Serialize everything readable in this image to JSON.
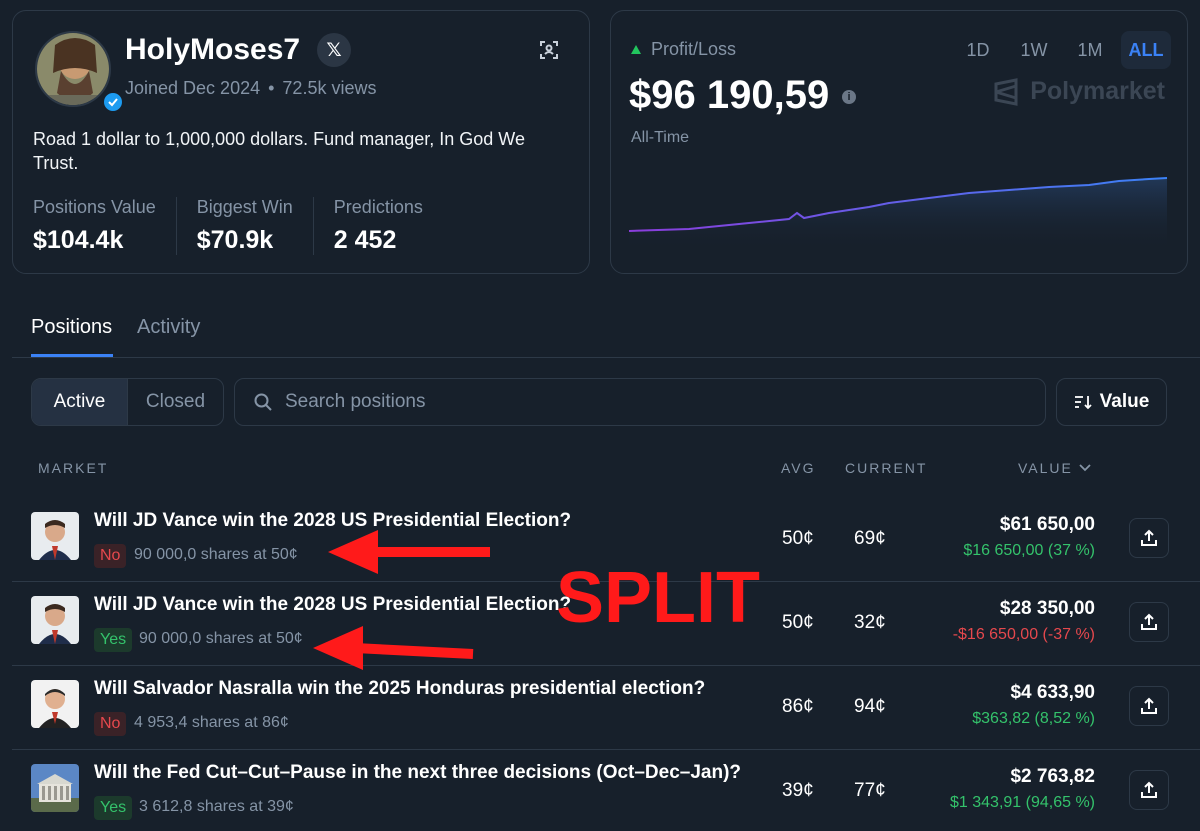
{
  "profile": {
    "username": "HolyMoses7",
    "x_badge": "𝕏",
    "joined": "Joined Dec 2024",
    "views": "72.5k views",
    "bio": "Road 1 dollar to 1,000,000 dollars. Fund manager, In God We Trust.",
    "stats": [
      {
        "label": "Positions Value",
        "value": "$104.4k"
      },
      {
        "label": "Biggest Win",
        "value": "$70.9k"
      },
      {
        "label": "Predictions",
        "value": "2 452"
      }
    ]
  },
  "pnl": {
    "label": "Profit/Loss",
    "value": "$96 190,59",
    "info": "i",
    "period_label": "All-Time",
    "ranges": [
      "1D",
      "1W",
      "1M",
      "ALL"
    ],
    "active_range": "ALL",
    "brand": "Polymarket"
  },
  "tabs": {
    "positions": "Positions",
    "activity": "Activity"
  },
  "filters": {
    "active": "Active",
    "closed": "Closed",
    "search_placeholder": "Search positions",
    "sort_label": "Value"
  },
  "columns": {
    "market": "MARKET",
    "avg": "AVG",
    "current": "CURRENT",
    "value": "VALUE"
  },
  "positions": [
    {
      "title": "Will JD Vance win the 2028 US Presidential Election?",
      "outcome": "No",
      "shares": "90 000,0 shares at 50¢",
      "avg": "50¢",
      "current": "69¢",
      "value": "$61 650,00",
      "pnl": "$16 650,00 (37 %)"
    },
    {
      "title": "Will JD Vance win the 2028 US Presidential Election?",
      "outcome": "Yes",
      "shares": "90 000,0 shares at 50¢",
      "avg": "50¢",
      "current": "32¢",
      "value": "$28 350,00",
      "pnl": "-$16 650,00 (-37 %)"
    },
    {
      "title": "Will Salvador Nasralla win the 2025 Honduras presidential election?",
      "outcome": "No",
      "shares": "4 953,4 shares at 86¢",
      "avg": "86¢",
      "current": "94¢",
      "value": "$4 633,90",
      "pnl": "$363,82 (8,52 %)"
    },
    {
      "title": "Will the Fed Cut–Cut–Pause in the next three decisions (Oct–Dec–Jan)?",
      "outcome": "Yes",
      "shares": "3 612,8 shares at 39¢",
      "avg": "39¢",
      "current": "77¢",
      "value": "$2 763,82",
      "pnl": "$1 343,91 (94,65 %)"
    }
  ],
  "annotation": "SPLIT",
  "colors": {
    "background": "#17202b",
    "accent": "#3b82f6",
    "positive": "#34c26b",
    "negative": "#e5484d",
    "annotation": "#ff1a1a"
  }
}
